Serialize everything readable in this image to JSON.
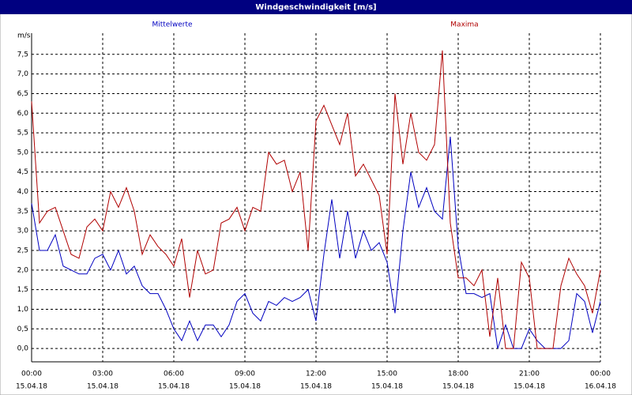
{
  "chart_data": {
    "type": "line",
    "title": "Windgeschwindigkeit [m/s]",
    "y_label": "m/s",
    "x": [
      0,
      20,
      40,
      60,
      80,
      100,
      120,
      140,
      160,
      180,
      200,
      220,
      240,
      260,
      280,
      300,
      320,
      340,
      360,
      380,
      400,
      420,
      440,
      460,
      480,
      500,
      520,
      540,
      560,
      580,
      600,
      620,
      640,
      660,
      680,
      700,
      720,
      740,
      760,
      780,
      800,
      820,
      840,
      860,
      880,
      900,
      920,
      940,
      960,
      980,
      1000,
      1020,
      1040,
      1060,
      1080,
      1100,
      1120,
      1140,
      1160,
      1180,
      1200,
      1220,
      1240,
      1260,
      1280,
      1300,
      1320,
      1340,
      1360,
      1380,
      1400,
      1420,
      1440
    ],
    "series": [
      {
        "name": "Mittelwerte",
        "color": "#0000c0",
        "values": [
          3.7,
          2.5,
          2.5,
          2.9,
          2.1,
          2.0,
          1.9,
          1.9,
          2.3,
          2.4,
          2.0,
          2.5,
          1.9,
          2.1,
          1.6,
          1.4,
          1.4,
          1.0,
          0.5,
          0.2,
          0.7,
          0.2,
          0.6,
          0.6,
          0.3,
          0.6,
          1.2,
          1.4,
          0.9,
          0.7,
          1.2,
          1.1,
          1.3,
          1.2,
          1.3,
          1.5,
          0.7,
          2.4,
          3.8,
          2.3,
          3.5,
          2.3,
          3.0,
          2.5,
          2.7,
          2.2,
          0.9,
          3.0,
          4.5,
          3.6,
          4.1,
          3.5,
          3.3,
          5.4,
          2.6,
          1.4,
          1.4,
          1.3,
          1.4,
          0.0,
          0.6,
          0.0,
          0.0,
          0.5,
          0.2,
          0.0,
          0.0,
          0.0,
          0.2,
          1.4,
          1.2,
          0.4,
          1.2
        ]
      },
      {
        "name": "Maxima",
        "color": "#b00000",
        "values": [
          6.3,
          3.2,
          3.5,
          3.6,
          3.0,
          2.4,
          2.3,
          3.1,
          3.3,
          3.0,
          4.0,
          3.6,
          4.1,
          3.5,
          2.4,
          2.9,
          2.6,
          2.4,
          2.1,
          2.8,
          1.3,
          2.5,
          1.9,
          2.0,
          3.2,
          3.3,
          3.6,
          3.0,
          3.6,
          3.5,
          5.0,
          4.7,
          4.8,
          4.0,
          4.5,
          2.5,
          5.8,
          6.2,
          5.7,
          5.2,
          6.0,
          4.4,
          4.7,
          4.3,
          3.9,
          2.4,
          6.5,
          4.7,
          6.0,
          5.0,
          4.8,
          5.2,
          7.6,
          3.2,
          1.8,
          1.8,
          1.6,
          2.0,
          0.3,
          1.8,
          0.0,
          0.0,
          2.2,
          1.8,
          0.0,
          0.0,
          0.0,
          1.6,
          2.3,
          1.9,
          1.6,
          0.9,
          2.0
        ]
      }
    ],
    "xlim": [
      0,
      1440
    ],
    "xticks": [
      {
        "value": 0,
        "label": "00:00"
      },
      {
        "value": 180,
        "label": "03:00"
      },
      {
        "value": 360,
        "label": "06:00"
      },
      {
        "value": 540,
        "label": "09:00"
      },
      {
        "value": 720,
        "label": "12:00"
      },
      {
        "value": 900,
        "label": "15:00"
      },
      {
        "value": 1080,
        "label": "18:00"
      },
      {
        "value": 1260,
        "label": "21:00"
      },
      {
        "value": 1440,
        "label": "00:00"
      }
    ],
    "xtick_dates": [
      "15.04.18",
      "15.04.18",
      "15.04.18",
      "15.04.18",
      "15.04.18",
      "15.04.18",
      "15.04.18",
      "15.04.18",
      "16.04.18"
    ],
    "ylim": [
      -0.34,
      8.04
    ],
    "yticks": [
      {
        "value": 0,
        "label": "0,0"
      },
      {
        "value": 0.5,
        "label": "0,5"
      },
      {
        "value": 1,
        "label": "1,0"
      },
      {
        "value": 1.5,
        "label": "1,5"
      },
      {
        "value": 2,
        "label": "2,0"
      },
      {
        "value": 2.5,
        "label": "2,5"
      },
      {
        "value": 3,
        "label": "3,0"
      },
      {
        "value": 3.5,
        "label": "3,5"
      },
      {
        "value": 4,
        "label": "4,0"
      },
      {
        "value": 4.5,
        "label": "4,5"
      },
      {
        "value": 5,
        "label": "5,0"
      },
      {
        "value": 5.5,
        "label": "5,5"
      },
      {
        "value": 6,
        "label": "6,0"
      },
      {
        "value": 6.5,
        "label": "6,5"
      },
      {
        "value": 7,
        "label": "7,0"
      },
      {
        "value": 7.5,
        "label": "7,5"
      }
    ],
    "grid": true
  }
}
